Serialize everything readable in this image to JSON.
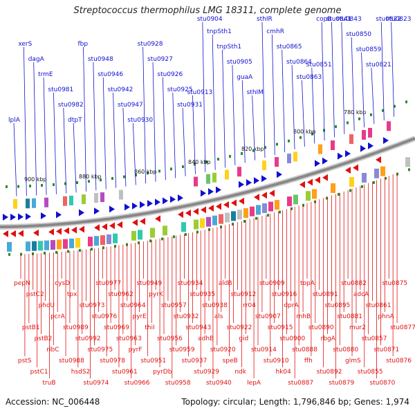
{
  "title": "Streptococcus thermophilus LMG 18311, complete genome",
  "footer": {
    "accession": "Accession: NC_006448",
    "topology": "Topology: circular; Length: 1,796,846 bp; Genes: 1,974"
  },
  "colors": {
    "forward": "#1010d0",
    "reverse": "#e01010",
    "backbone": "#888888",
    "tick": "#2a8a2a"
  },
  "scale_labels": [
    "900 kbp",
    "880 kbp",
    "860 kbp",
    "840 kbp",
    "820 kbp",
    "800 kbp",
    "780 kbp"
  ],
  "top_labels": [
    "lplA",
    "xerS",
    "dagA",
    "trmE",
    "stu0981",
    "stu0982",
    "dtpT",
    "fbp",
    "stu0948",
    "stu0946",
    "stu0942",
    "stu0947",
    "stu0930",
    "stu0928",
    "stu0927",
    "stu0926",
    "stu0925",
    "stu0931",
    "stu0913",
    "stu0904",
    "tnpSth1",
    "tnpSth1",
    "stu0905",
    "guaA",
    "sthIM",
    "sthIR",
    "cmhR",
    "stu0865",
    "stu0864",
    "stu0863",
    "stu0851",
    "copB",
    "stu0841",
    "stu0843",
    "stu0850",
    "stu0859",
    "stu0821",
    "stu0822",
    "stu0823"
  ],
  "bottom_labels": [
    "pepN",
    "pstS",
    "pstB1",
    "pstC2",
    "pstC1",
    "pstB2",
    "phoU",
    "truB",
    "ribC",
    "pcrA",
    "cysD",
    "stu0988",
    "stu0989",
    "tpx",
    "hsdS2",
    "stu0992",
    "stu0973",
    "stu0974",
    "stu0975",
    "stu0976",
    "stu0977",
    "stu0978",
    "stu0969",
    "stu0962",
    "stu0961",
    "stu0963",
    "stu0964",
    "stu0966",
    "pyrF",
    "pyrE",
    "stu0949",
    "stu0951",
    "thiI",
    "pyrK",
    "pyrDb",
    "stu0956",
    "stu0957",
    "stu0958",
    "stu0959",
    "stu0932",
    "stu0934",
    "stu0937",
    "stu0943",
    "stu0935",
    "stu0929",
    "adhB",
    "stu0938",
    "stu0940",
    "stu0920",
    "als",
    "aldB",
    "speB",
    "stu0922",
    "stu0912",
    "ndk",
    "gid",
    "rr04",
    "lepA",
    "stu0914",
    "stu0907",
    "stu0909",
    "stu0910",
    "stu0915",
    "stu0916",
    "hk04",
    "stu0900",
    "dprA",
    "stu0887",
    "stu0888",
    "rnhB",
    "topA",
    "ffh",
    "stu0890",
    "stu0891",
    "stu0892",
    "rbgA",
    "stu0895",
    "stu0879",
    "stu0880",
    "stu0881",
    "stu0882",
    "glmS",
    "mur2",
    "adcA",
    "stu0855",
    "stu0857",
    "stu0861",
    "stu0870",
    "stu0871",
    "phnA",
    "stu0875",
    "stu0876",
    "stu0877"
  ]
}
